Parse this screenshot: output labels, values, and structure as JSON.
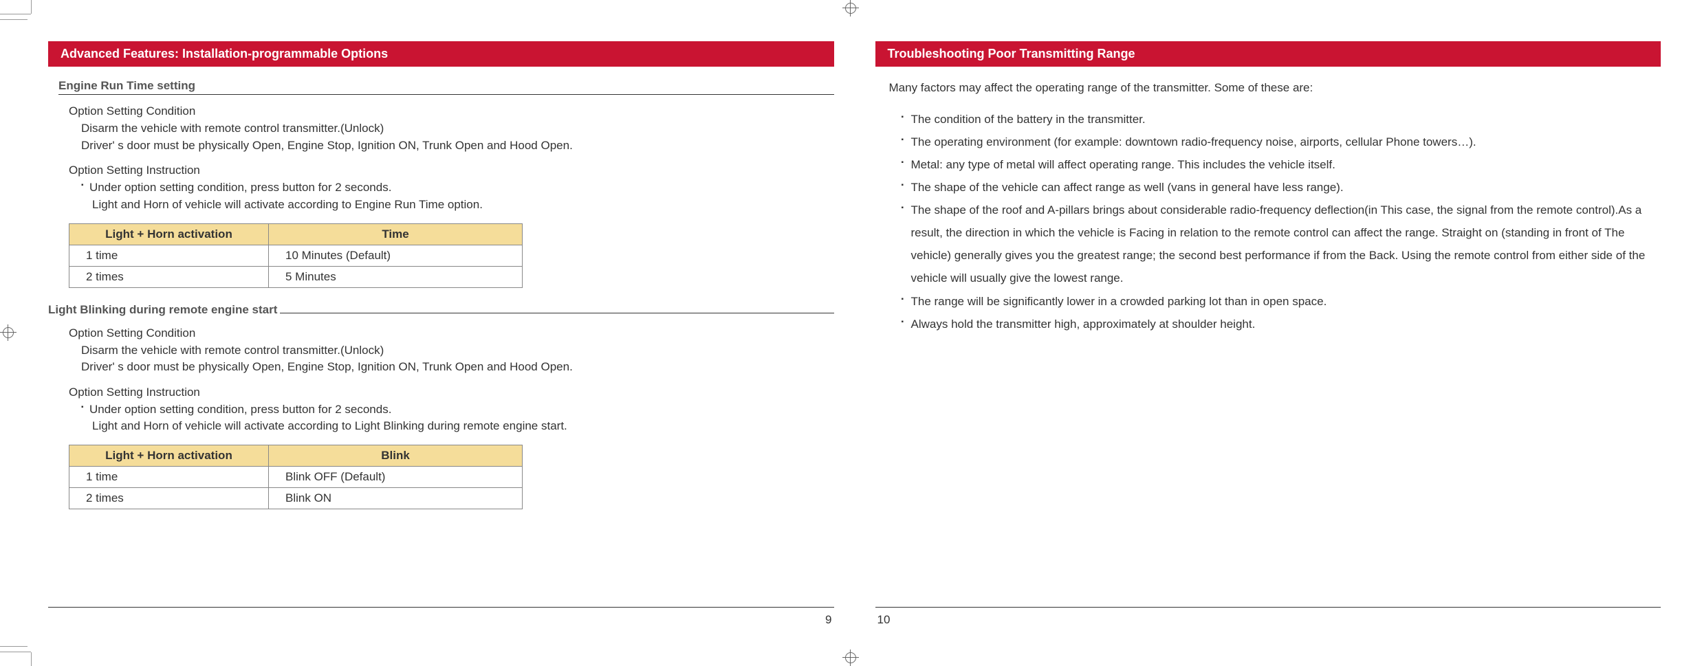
{
  "left": {
    "header": "Advanced Features: Installation-programmable Options",
    "section1": {
      "title": "Engine Run Time setting",
      "cond_label": "Option Setting Condition",
      "cond_line1": "Disarm the vehicle with remote control transmitter.(Unlock)",
      "cond_line2": "Driver' s door must be physically Open, Engine Stop, Ignition ON, Trunk Open and Hood Open.",
      "inst_label": "Option Setting Instruction",
      "inst_bullet": "Under option setting condition, press  button for 2 seconds.",
      "inst_sub": "Light and Horn of vehicle will activate according to Engine Run Time option.",
      "table": {
        "h1": "Light + Horn activation",
        "h2": "Time",
        "r1c1": "1 time",
        "r1c2": "10 Minutes (Default)",
        "r2c1": "2 times",
        "r2c2": "5 Minutes"
      }
    },
    "section2": {
      "title": "Light Blinking during remote engine start",
      "cond_label": "Option Setting Condition",
      "cond_line1": "Disarm the vehicle with remote control transmitter.(Unlock)",
      "cond_line2": "Driver' s door must be physically Open, Engine Stop, Ignition ON, Trunk Open and Hood Open.",
      "inst_label": "Option Setting Instruction",
      "inst_bullet": "Under option setting condition, press  button for 2 seconds.",
      "inst_sub": "Light and Horn of vehicle will activate according to Light Blinking during remote engine start.",
      "table": {
        "h1": "Light + Horn activation",
        "h2": "Blink",
        "r1c1": "1 time",
        "r1c2": "Blink OFF (Default)",
        "r2c1": "2 times",
        "r2c2": "Blink ON"
      }
    },
    "page_num": "9"
  },
  "right": {
    "header": "Troubleshooting Poor Transmitting Range",
    "intro": "Many factors may affect the operating range of the transmitter. Some of these are:",
    "items": {
      "i1": "The condition of the battery in the transmitter.",
      "i2": "The operating environment (for example: downtown radio-frequency noise, airports, cellular Phone towers…).",
      "i3": "Metal: any type of metal will affect operating range. This includes the vehicle itself.",
      "i4": "The shape of the vehicle can affect range as well (vans in general have less range).",
      "i5": "The shape of the roof and A-pillars brings about considerable radio-frequency deflection(in This case, the signal from the remote control).As a result, the direction in which the vehicle is Facing in relation to the remote control can affect the range. Straight on (standing in front of The vehicle) generally gives you the greatest range; the second best performance if from the Back. Using the remote control from either side of the vehicle will usually give the lowest range.",
      "i6": "The range will be significantly lower in a crowded parking lot than in open space.",
      "i7": "Always hold the transmitter high, approximately at shoulder height."
    },
    "page_num": "10"
  }
}
